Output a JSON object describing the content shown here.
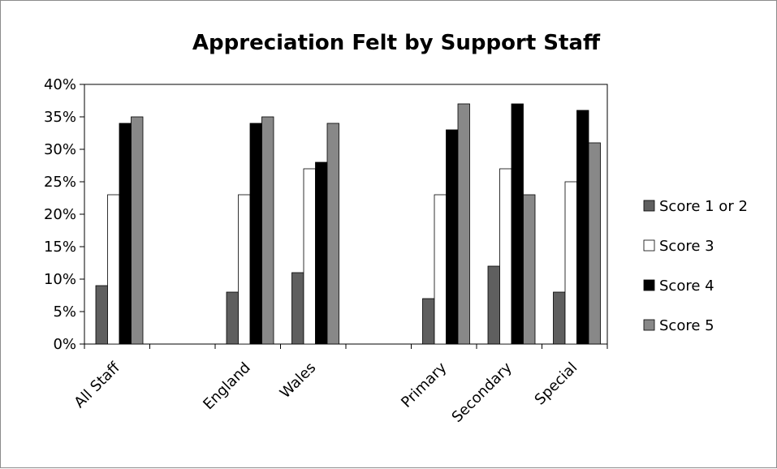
{
  "chart_data": {
    "type": "bar",
    "title": "Appreciation Felt by Support Staff",
    "xlabel": "",
    "ylabel": "",
    "categories": [
      "All Staff",
      "",
      "England",
      "Wales",
      "",
      "Primary",
      "Secondary",
      "Special"
    ],
    "series": [
      {
        "name": "Score 1 or 2",
        "color": "#5f5f5f",
        "values": [
          9,
          null,
          8,
          11,
          null,
          7,
          12,
          8
        ]
      },
      {
        "name": "Score 3",
        "color": "#ffffff",
        "values": [
          23,
          null,
          23,
          27,
          null,
          23,
          27,
          25
        ]
      },
      {
        "name": "Score 4",
        "color": "#000000",
        "values": [
          34,
          null,
          34,
          28,
          null,
          33,
          37,
          36
        ]
      },
      {
        "name": "Score 5",
        "color": "#888888",
        "values": [
          35,
          null,
          35,
          34,
          null,
          37,
          23,
          31
        ]
      }
    ],
    "ylim": [
      0,
      40
    ],
    "yticks": [
      0,
      5,
      10,
      15,
      20,
      25,
      30,
      35,
      40
    ],
    "ytick_labels": [
      "0%",
      "5%",
      "10%",
      "15%",
      "20%",
      "25%",
      "30%",
      "35%",
      "40%"
    ],
    "grid": false,
    "legend_position": "right"
  }
}
